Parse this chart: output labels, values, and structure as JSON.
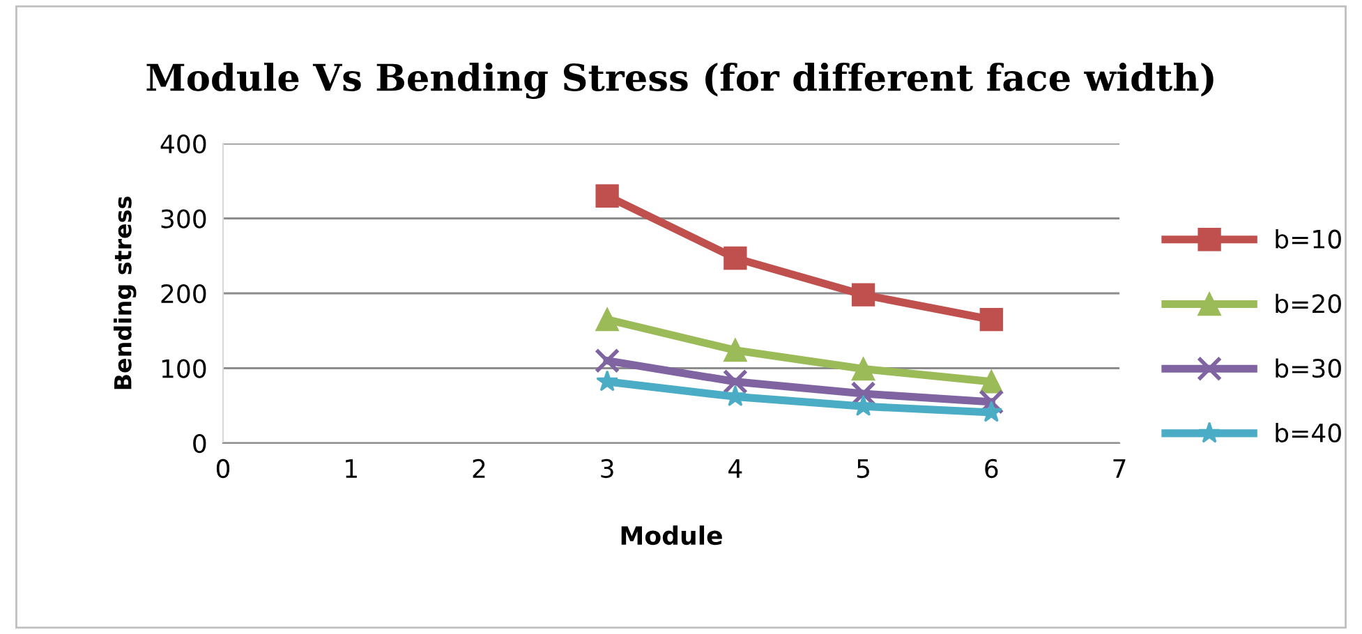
{
  "chart_data": {
    "type": "line",
    "title": "Module Vs Bending Stress (for different face width)",
    "xlabel": "Module",
    "ylabel": "Bending stress",
    "x": [
      3,
      4,
      5,
      6
    ],
    "series": [
      {
        "name": "b=10",
        "color": "#c0504d",
        "marker": "square",
        "values": [
          330,
          247,
          198,
          165
        ]
      },
      {
        "name": "b=20",
        "color": "#9bbb59",
        "marker": "triangle",
        "values": [
          165,
          124,
          99,
          82
        ]
      },
      {
        "name": "b=30",
        "color": "#8064a2",
        "marker": "cross",
        "values": [
          110,
          82,
          66,
          55
        ]
      },
      {
        "name": "b=40",
        "color": "#4bacc6",
        "marker": "star",
        "values": [
          82,
          62,
          49,
          41
        ]
      }
    ],
    "xlim": [
      0,
      7
    ],
    "xticks": [
      0,
      1,
      2,
      3,
      4,
      5,
      6,
      7
    ],
    "ylim": [
      0,
      400
    ],
    "yticks": [
      0,
      100,
      200,
      300,
      400
    ],
    "grid": "y",
    "legend": "right",
    "line_style": "solid"
  }
}
